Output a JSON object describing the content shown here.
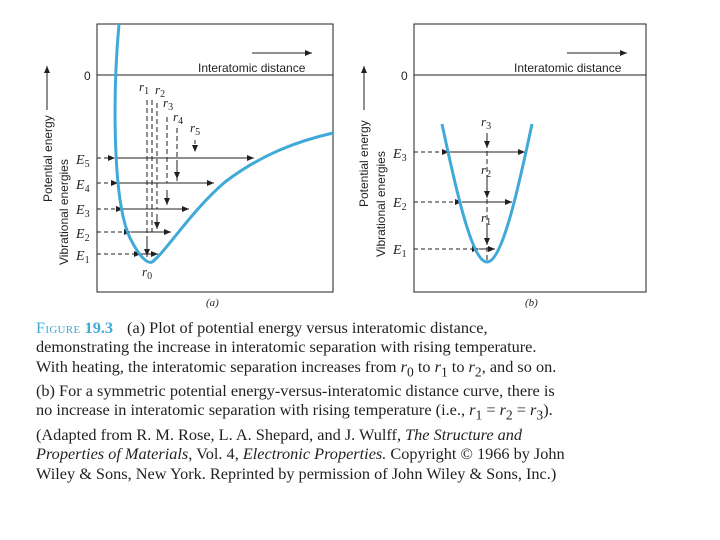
{
  "panel_a": {
    "zero_label": "0",
    "x_axis_label": "Interatomic distance",
    "y_axis_label_1": "Potential energy",
    "y_axis_label_2": "Vibrational energies",
    "energy_levels": [
      {
        "label": "E",
        "sub": "1"
      },
      {
        "label": "E",
        "sub": "2"
      },
      {
        "label": "E",
        "sub": "3"
      },
      {
        "label": "E",
        "sub": "4"
      },
      {
        "label": "E",
        "sub": "5"
      }
    ],
    "separations": [
      {
        "label": "r",
        "sub": "1"
      },
      {
        "label": "r",
        "sub": "2"
      },
      {
        "label": "r",
        "sub": "3"
      },
      {
        "label": "r",
        "sub": "4"
      },
      {
        "label": "r",
        "sub": "5"
      }
    ],
    "r0": {
      "label": "r",
      "sub": "0"
    },
    "panel_label": "(a)"
  },
  "panel_b": {
    "zero_label": "0",
    "x_axis_label": "Interatomic distance",
    "y_axis_label_1": "Potential energy",
    "y_axis_label_2": "Vibrational energies",
    "energy_levels": [
      {
        "label": "E",
        "sub": "1"
      },
      {
        "label": "E",
        "sub": "2"
      },
      {
        "label": "E",
        "sub": "3"
      }
    ],
    "separations": [
      {
        "label": "r",
        "sub": "1"
      },
      {
        "label": "r",
        "sub": "2"
      },
      {
        "label": "r",
        "sub": "3"
      }
    ],
    "panel_label": "(b)"
  },
  "caption": {
    "figure_word": "Figure",
    "figure_number": "19.3",
    "l1": "(a) Plot of potential energy versus interatomic distance,",
    "l2": "demonstrating the increase in interatomic separation with rising temperature.",
    "l3_a": "With heating, the interatomic separation increases from ",
    "l3_r0": "r",
    "l3_r0_sub": "0",
    "l3_to": " to ",
    "l3_r1": "r",
    "l3_r1_sub": "1",
    "l3_to2": " to ",
    "l3_r2": "r",
    "l3_r2_sub": "2",
    "l3_end": ", and so on.",
    "l4": "(b) For a symmetric potential energy-versus-interatomic distance curve, there is",
    "l5_a": "no increase in interatomic separation with rising temperature (i.e., ",
    "l5_r1": "r",
    "l5_r1_sub": "1",
    "l5_eq1": " = ",
    "l5_r2": "r",
    "l5_r2_sub": "2",
    "l5_eq2": " = ",
    "l5_r3": "r",
    "l5_r3_sub": "3",
    "l5_end": ").",
    "l6_a": "(Adapted from R. M. Rose, L. A. Shepard, and J. Wulff, ",
    "l6_title": "The Structure and",
    "l7_title": "Properties of Materials",
    "l7_b": ", Vol. 4, ",
    "l7_title2": "Electronic Properties.",
    "l7_c": " Copyright © 1966 by John",
    "l8": "Wiley & Sons, New York. Reprinted by permission of John Wiley & Sons, Inc.)"
  },
  "colors": {
    "curve": "#3fa9d8",
    "ink": "#231f20",
    "caption_accent": "#3fa9d8"
  }
}
